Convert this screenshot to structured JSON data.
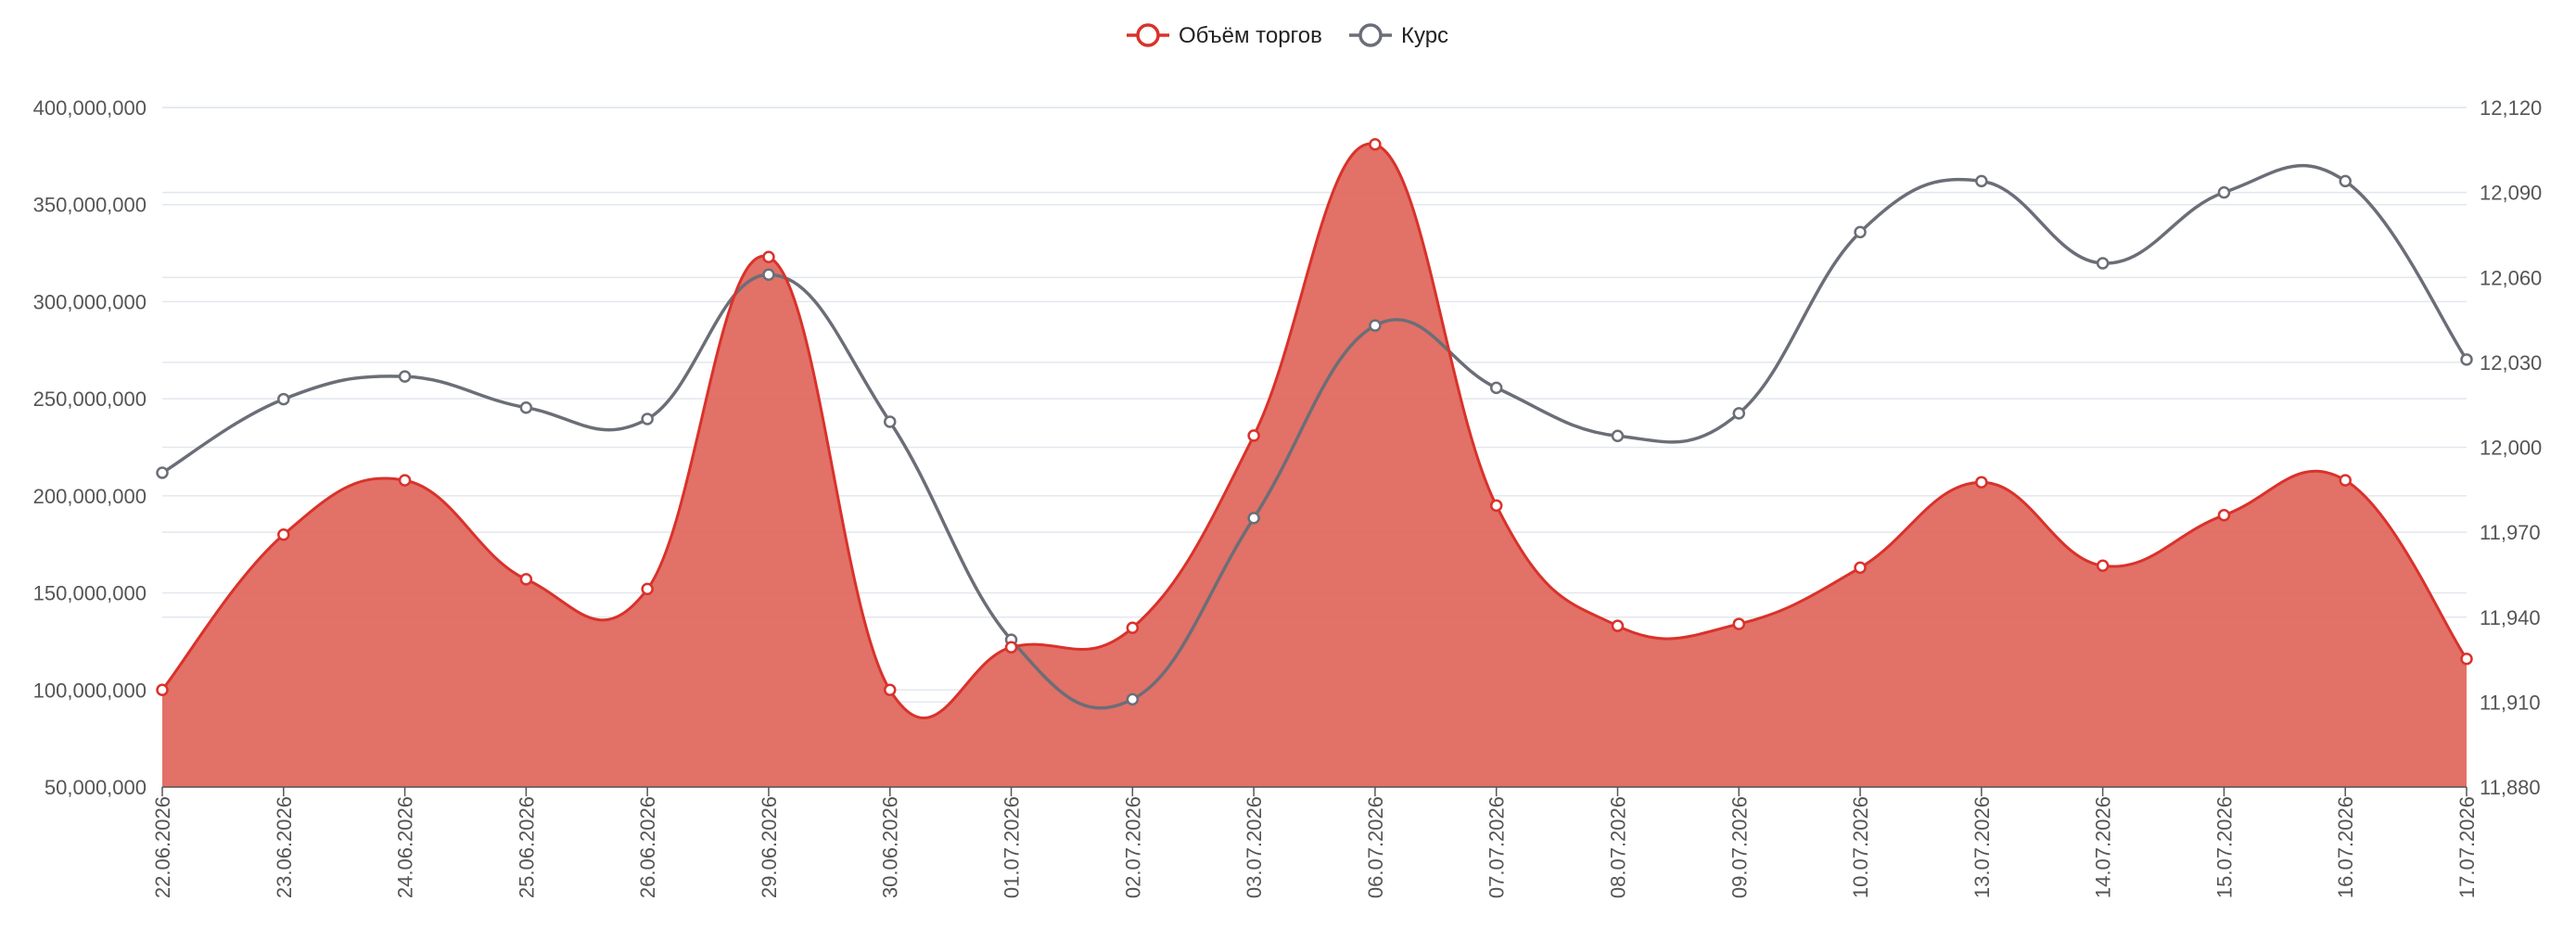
{
  "chart_data": {
    "type": "area",
    "categories": [
      "22.06.2026",
      "23.06.2026",
      "24.06.2026",
      "25.06.2026",
      "26.06.2026",
      "29.06.2026",
      "30.06.2026",
      "01.07.2026",
      "02.07.2026",
      "03.07.2026",
      "06.07.2026",
      "07.07.2026",
      "08.07.2026",
      "09.07.2026",
      "10.07.2026",
      "13.07.2026",
      "14.07.2026",
      "15.07.2026",
      "16.07.2026",
      "17.07.2026"
    ],
    "series": [
      {
        "name": "Объём торгов",
        "type": "area",
        "axis": "left",
        "color": "#d9322b",
        "fill": "#e0695f",
        "values": [
          100000000,
          180000000,
          208000000,
          157000000,
          152000000,
          323000000,
          100000000,
          122000000,
          132000000,
          231000000,
          381000000,
          195000000,
          133000000,
          134000000,
          163000000,
          207000000,
          164000000,
          190000000,
          208000000,
          116000000
        ]
      },
      {
        "name": "Курс",
        "type": "line",
        "axis": "right",
        "color": "#6b6e77",
        "values": [
          11991,
          12017,
          12025,
          12014,
          12010,
          12061,
          12009,
          11932,
          11911,
          11975,
          12043,
          12021,
          12004,
          12012,
          12076,
          12094,
          12065,
          12090,
          12094,
          12031
        ]
      }
    ],
    "y_left": {
      "min": 50000000,
      "max": 400000000,
      "ticks": [
        "50,000,000",
        "100,000,000",
        "150,000,000",
        "200,000,000",
        "250,000,000",
        "300,000,000",
        "350,000,000",
        "400,000,000"
      ]
    },
    "y_right": {
      "min": 11880,
      "max": 12120,
      "ticks": [
        "11,880",
        "11,910",
        "11,940",
        "11,970",
        "12,000",
        "12,030",
        "12,060",
        "12,090",
        "12,120"
      ]
    },
    "grid": true,
    "legend": "top-center"
  }
}
